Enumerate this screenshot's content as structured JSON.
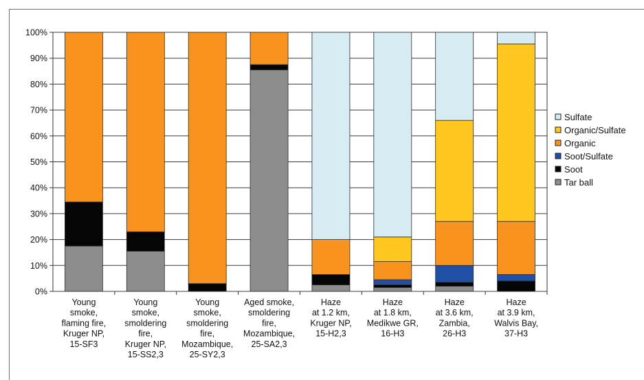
{
  "chart_data": {
    "type": "bar",
    "stacked": true,
    "percent": true,
    "ylim": [
      0,
      100
    ],
    "y_ticks": [
      "0%",
      "10%",
      "20%",
      "30%",
      "40%",
      "50%",
      "60%",
      "70%",
      "80%",
      "90%",
      "100%"
    ],
    "grid": true,
    "legend_position": "right",
    "categories": [
      [
        "Young",
        "smoke,",
        "flaming fire,",
        "Kruger NP,",
        "15-SF3"
      ],
      [
        "Young",
        "smoke,",
        "smoldering",
        "fire,",
        "Kruger NP,",
        "15-SS2,3"
      ],
      [
        "Young",
        "smoke,",
        "smoldering",
        "fire,",
        "Mozambique,",
        "25-SY2,3"
      ],
      [
        "Aged smoke,",
        "smoldering",
        "fire,",
        "Mozambique,",
        "25-SA2,3"
      ],
      [
        "Haze",
        "at 1.2 km,",
        "Kruger NP,",
        "15-H2,3"
      ],
      [
        "Haze",
        "at 1.8 km,",
        "Medikwe GR,",
        "16-H3"
      ],
      [
        "Haze",
        "at 3.6 km,",
        "Zambia,",
        "26-H3"
      ],
      [
        "Haze",
        "at 3.9 km,",
        "Walvis Bay,",
        "37-H3"
      ]
    ],
    "series": [
      {
        "name": "Tar ball",
        "color": "#8c8c8c",
        "values": [
          17.5,
          15.5,
          0,
          85.5,
          2.5,
          1.5,
          2,
          0
        ]
      },
      {
        "name": "Soot",
        "color": "#050505",
        "values": [
          17,
          7.5,
          3,
          2,
          4,
          1,
          1.5,
          4
        ]
      },
      {
        "name": "Soot/Sulfate",
        "color": "#1f4fa6",
        "values": [
          0,
          0,
          0,
          0,
          0,
          2,
          6.5,
          2.5
        ]
      },
      {
        "name": "Organic",
        "color": "#f7931e",
        "values": [
          65.5,
          77,
          97,
          12.5,
          13.5,
          7,
          17,
          20.5
        ]
      },
      {
        "name": "Organic/Sulfate",
        "color": "#ffc720",
        "values": [
          0,
          0,
          0,
          0,
          0,
          9.5,
          39,
          68.5
        ]
      },
      {
        "name": "Sulfate",
        "color": "#d6ecf2",
        "values": [
          0,
          0,
          0,
          0,
          80,
          79,
          34,
          4.5
        ]
      }
    ],
    "legend_order": [
      "Sulfate",
      "Organic/Sulfate",
      "Organic",
      "Soot/Sulfate",
      "Soot",
      "Tar ball"
    ]
  }
}
